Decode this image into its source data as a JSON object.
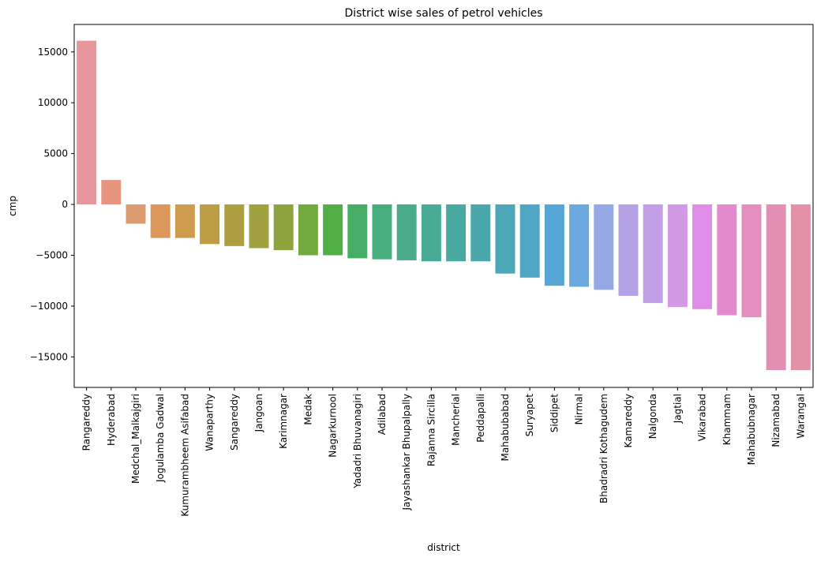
{
  "chart_data": {
    "type": "bar",
    "title": "District wise sales of petrol vehicles",
    "xlabel": "district",
    "ylabel": "cmp",
    "ylim": [
      -18000,
      17700
    ],
    "yticks": [
      -15000,
      -10000,
      -5000,
      0,
      5000,
      10000,
      15000
    ],
    "grid": false,
    "legend": "none",
    "categories": [
      "Rangareddy",
      "Hyderabad",
      "Medchal_Malkajgiri",
      "Jogulamba Gadwal",
      "Kumurambheem Asifabad",
      "Wanaparthy",
      "Sangareddy",
      "Jangoan",
      "Karimnagar",
      "Medak",
      "Nagarkurnool",
      "Yadadri Bhuvanagiri",
      "Adilabad",
      "Jayashankar Bhupalpally",
      "Rajanna Sircilla",
      "Mancherial",
      "Peddapalli",
      "Mahabubabad",
      "Suryapet",
      "Siddipet",
      "Nirmal",
      "Bhadradri Kothagudem",
      "Kamareddy",
      "Nalgonda",
      "Jagtial",
      "Vikarabad",
      "Khammam",
      "Mahabubnagar",
      "Nizamabad",
      "Warangal"
    ],
    "values": [
      16100,
      2400,
      -1900,
      -3300,
      -3300,
      -3900,
      -4100,
      -4300,
      -4500,
      -5000,
      -5000,
      -5300,
      -5400,
      -5500,
      -5600,
      -5600,
      -5600,
      -6800,
      -7200,
      -8000,
      -8100,
      -8400,
      -9000,
      -9700,
      -10100,
      -10300,
      -10900,
      -11100,
      -16300,
      -16300
    ],
    "colors": [
      "#e8969d",
      "#e8957f",
      "#dd9b72",
      "#dc985a",
      "#cd9c4f",
      "#bd9d43",
      "#ae9e42",
      "#a0a040",
      "#8ea33e",
      "#73aa3f",
      "#51ae46",
      "#47ad66",
      "#48ad7d",
      "#49ab8a",
      "#49aa95",
      "#4aa9a1",
      "#4aa8ac",
      "#4ca8b8",
      "#4fa7c5",
      "#55a5d5",
      "#6aa8df",
      "#96a9e5",
      "#b5a2e5",
      "#c39ee6",
      "#d299e5",
      "#df8de7",
      "#e38acd",
      "#e48dbf",
      "#e38fb3",
      "#e391a6"
    ]
  }
}
